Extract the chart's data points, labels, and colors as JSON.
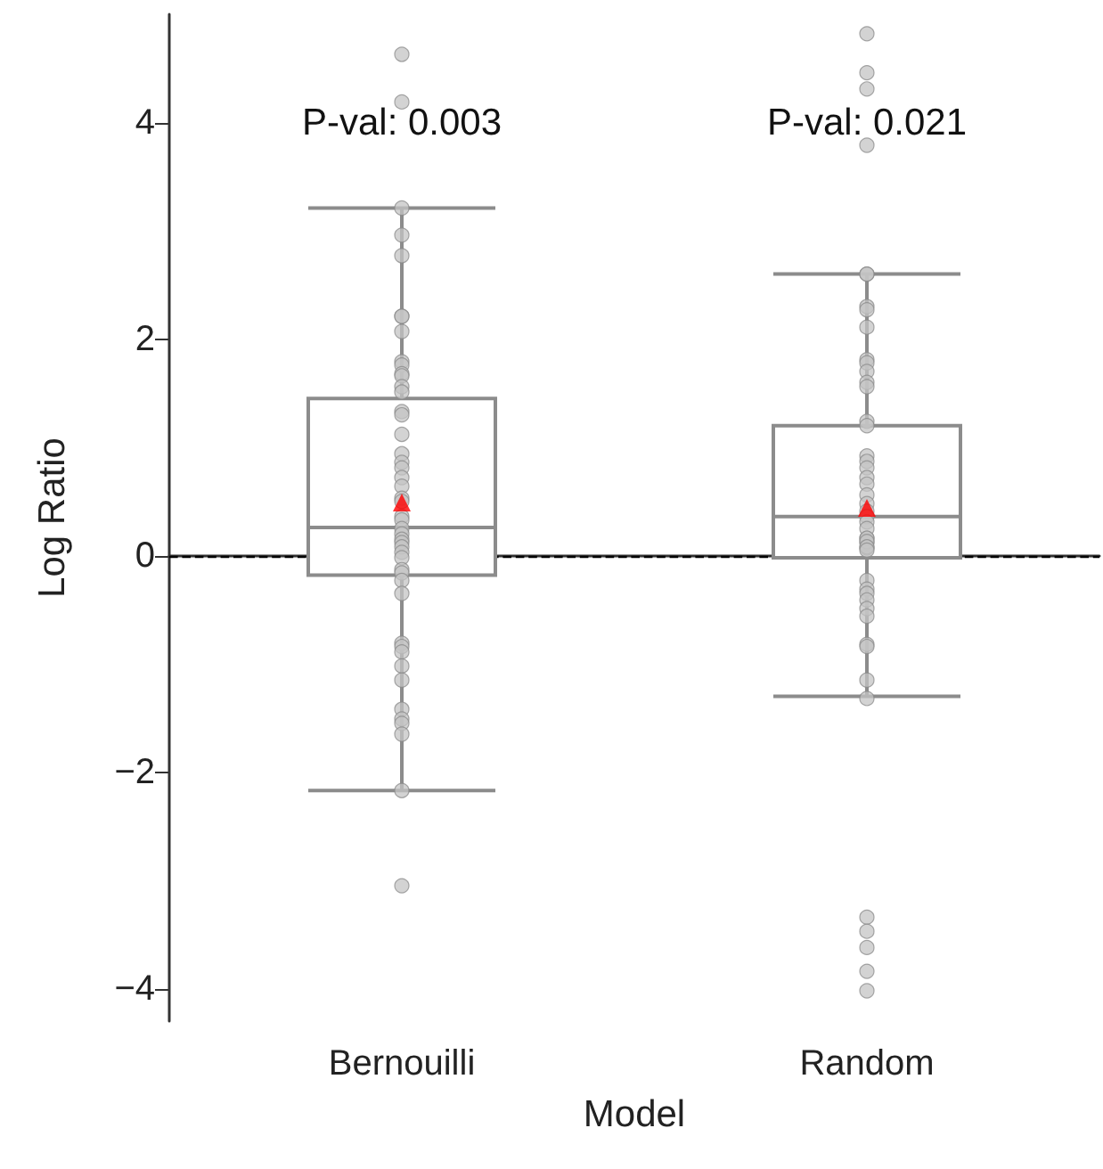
{
  "chart_data": {
    "type": "box",
    "xlabel": "Model",
    "ylabel": "Log Ratio",
    "categories": [
      "Bernouilli",
      "Random"
    ],
    "ylim": [
      -4.3,
      5.0
    ],
    "yticks": [
      -4,
      -2,
      0,
      2,
      4
    ],
    "grid": false,
    "marker": "circle",
    "ref_lines": [
      {
        "axis": "y",
        "value": 0,
        "color": "#000000",
        "line_style": "dashed"
      }
    ],
    "annotations": [
      "P-val: 0.003",
      "P-val: 0.021"
    ],
    "series": [
      {
        "color": "#8c8c8c",
        "boxes": [
          {
            "low": -2.17,
            "q1": -0.18,
            "median": 0.26,
            "q3": 1.45,
            "high": 3.21,
            "mean": 0.49
          },
          {
            "low": -1.3,
            "q1": -0.02,
            "median": 0.36,
            "q3": 1.2,
            "high": 2.6,
            "mean": 0.44
          }
        ]
      },
      {
        "type": "scatter",
        "color": "#c4c4c4",
        "x": [
          "Bernouilli",
          "Bernouilli",
          "Bernouilli",
          "Bernouilli",
          "Bernouilli",
          "Bernouilli",
          "Bernouilli",
          "Bernouilli",
          "Bernouilli",
          "Bernouilli",
          "Bernouilli",
          "Bernouilli",
          "Bernouilli",
          "Bernouilli",
          "Bernouilli",
          "Bernouilli",
          "Bernouilli",
          "Bernouilli",
          "Bernouilli",
          "Bernouilli",
          "Bernouilli",
          "Bernouilli",
          "Bernouilli",
          "Bernouilli",
          "Bernouilli",
          "Bernouilli",
          "Bernouilli",
          "Bernouilli",
          "Bernouilli",
          "Bernouilli",
          "Bernouilli",
          "Bernouilli",
          "Bernouilli",
          "Bernouilli",
          "Bernouilli",
          "Bernouilli",
          "Bernouilli",
          "Bernouilli",
          "Bernouilli",
          "Bernouilli",
          "Bernouilli",
          "Bernouilli",
          "Bernouilli",
          "Bernouilli",
          "Bernouilli",
          "Bernouilli",
          "Bernouilli",
          "Bernouilli",
          "Random",
          "Random",
          "Random",
          "Random",
          "Random",
          "Random",
          "Random",
          "Random",
          "Random",
          "Random",
          "Random",
          "Random",
          "Random",
          "Random",
          "Random",
          "Random",
          "Random",
          "Random",
          "Random",
          "Random",
          "Random",
          "Random",
          "Random",
          "Random",
          "Random",
          "Random",
          "Random",
          "Random",
          "Random",
          "Random",
          "Random",
          "Random",
          "Random",
          "Random",
          "Random",
          "Random",
          "Random",
          "Random",
          "Random",
          "Random",
          "Random",
          "Random",
          "Random",
          "Random",
          "Random",
          "Random",
          "Random",
          "Random",
          "Random"
        ],
        "values": [
          4.63,
          4.19,
          3.21,
          2.96,
          2.77,
          2.21,
          2.21,
          2.07,
          1.79,
          1.76,
          1.68,
          1.66,
          1.56,
          1.51,
          1.33,
          1.3,
          1.12,
          0.94,
          0.86,
          0.81,
          0.72,
          0.64,
          0.53,
          0.5,
          0.36,
          0.33,
          0.25,
          0.2,
          0.15,
          0.12,
          0.08,
          0.03,
          -0.02,
          -0.13,
          -0.16,
          -0.23,
          -0.35,
          -0.81,
          -0.84,
          -0.89,
          -1.02,
          -1.15,
          -1.42,
          -1.51,
          -1.55,
          -1.65,
          -2.17,
          -3.05,
          4.82,
          4.46,
          4.31,
          3.79,
          2.6,
          2.6,
          2.3,
          2.27,
          2.11,
          1.81,
          1.78,
          1.7,
          1.6,
          1.56,
          1.24,
          1.2,
          0.92,
          0.87,
          0.81,
          0.72,
          0.66,
          0.56,
          0.48,
          0.41,
          0.36,
          0.31,
          0.25,
          0.16,
          0.12,
          0.07,
          0.16,
          0.13,
          0.08,
          0.05,
          -0.23,
          -0.31,
          -0.35,
          -0.41,
          -0.49,
          -0.56,
          -0.82,
          -0.84,
          -1.15,
          -1.32,
          -3.34,
          -3.47,
          -3.62,
          -3.84,
          -4.02
        ]
      }
    ]
  }
}
